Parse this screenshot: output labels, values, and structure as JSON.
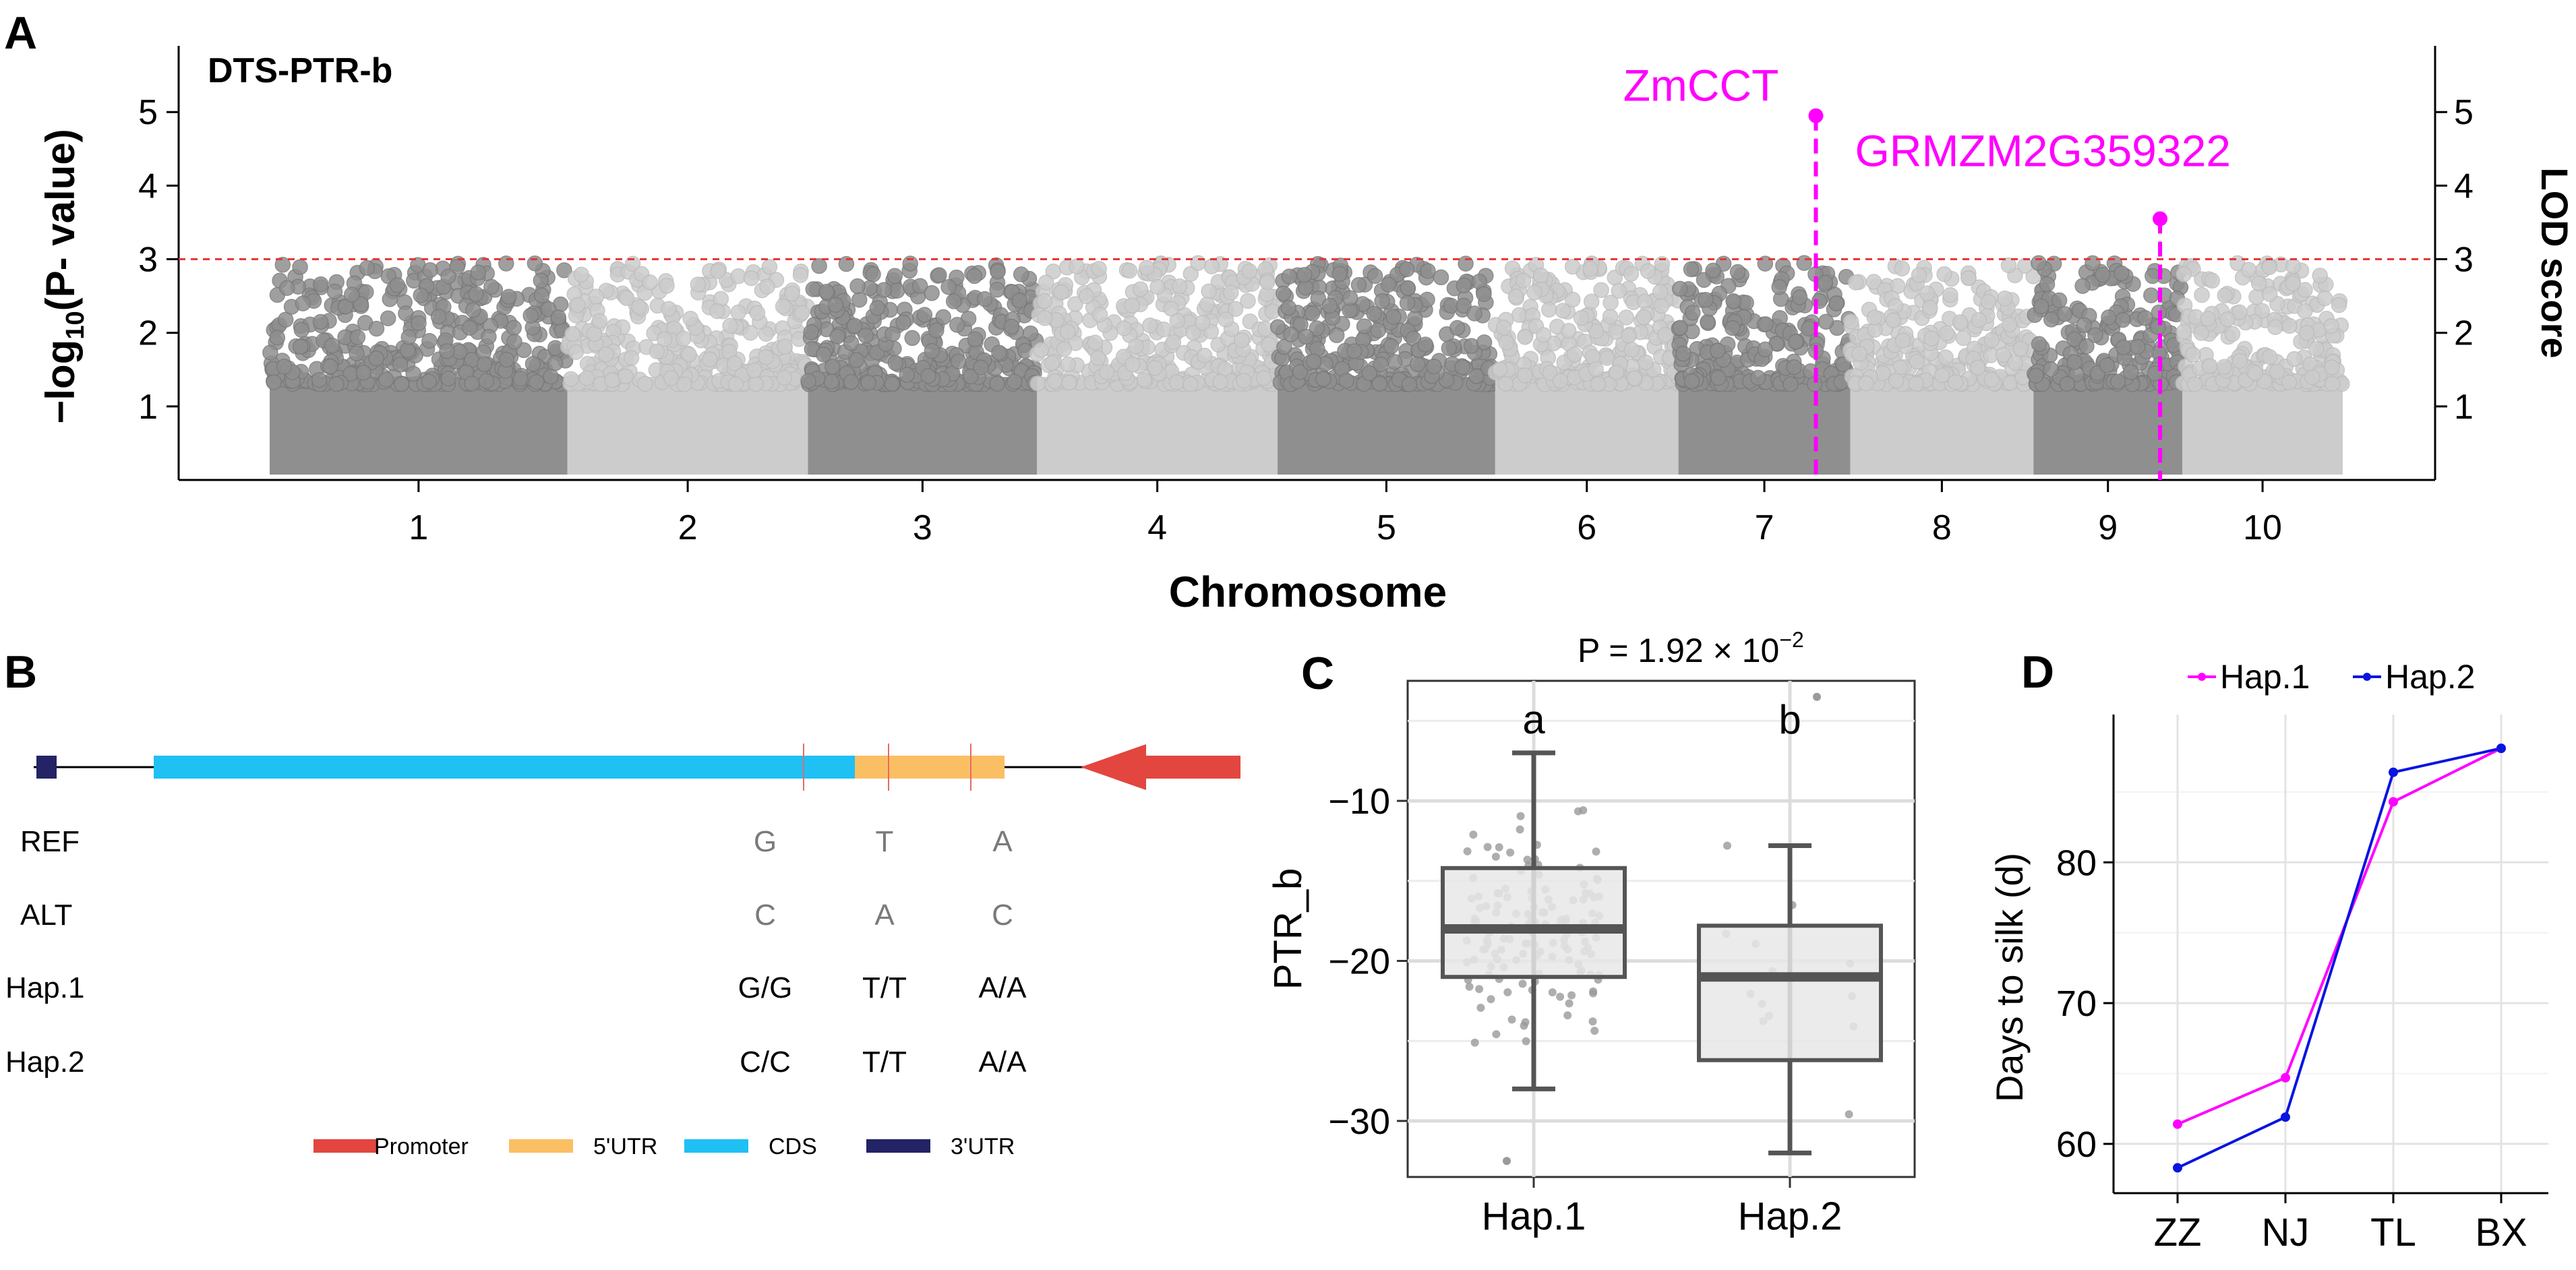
{
  "figure": {
    "panel_labels": [
      "A",
      "B",
      "C",
      "D"
    ],
    "colors": {
      "magenta": "#ff00ff",
      "threshold": "#e53935",
      "chr_dark": "#8f8f8f",
      "chr_light": "#cccccc",
      "promoter": "#e2463f",
      "utr5": "#fbbf63",
      "cds": "#1fc0f4",
      "utr3": "#232366",
      "hap2_line": "#0a14e0"
    }
  },
  "chart_data": [
    {
      "panel": "A",
      "type": "scatter",
      "title": "DTS-PTR-b",
      "xlabel": "Chromosome",
      "ylabel_left": {
        "prefix": "−log",
        "sub": "10",
        "suffix": "(P- value)"
      },
      "ylabel_right": "LOD score",
      "categories": [
        "1",
        "2",
        "3",
        "4",
        "5",
        "6",
        "7",
        "8",
        "9",
        "10"
      ],
      "chromosome_weights": [
        1.3,
        1.05,
        1.0,
        1.05,
        0.95,
        0.8,
        0.75,
        0.8,
        0.65,
        0.7
      ],
      "yticks_left": [
        "1",
        "2",
        "3",
        "4",
        "5"
      ],
      "yticks_right": [
        "1",
        "2",
        "3",
        "4",
        "5"
      ],
      "ylim": [
        0,
        5.9
      ],
      "threshold": 3,
      "significant_loci": [
        {
          "label": "ZmCCT",
          "chromosome": 7,
          "position": 0.8,
          "value": 4.95
        },
        {
          "label": "GRMZM2G359322",
          "chromosome": 9,
          "position": 0.85,
          "value": 3.55
        }
      ]
    },
    {
      "panel": "C",
      "type": "box",
      "ylabel": "PTR_b",
      "pvalue": {
        "text": "P = 1.92 × 10",
        "exp": "−2"
      },
      "categories": [
        "Hap.1",
        "Hap.2"
      ],
      "letters": [
        "a",
        "b"
      ],
      "yticks": [
        "−10",
        "−20",
        "−30"
      ],
      "ytick_values": [
        -10,
        -20,
        -30
      ],
      "ylim": [
        -33.5,
        -2.5
      ],
      "boxes": [
        {
          "name": "Hap.1",
          "min": -28,
          "q1": -21,
          "median": -18,
          "q3": -14.2,
          "max": -7,
          "n_points": 140,
          "outliers": [
            -32.5
          ]
        },
        {
          "name": "Hap.2",
          "min": -32,
          "q1": -26.2,
          "median": -21,
          "q3": -17.8,
          "max": -12.8,
          "n_points": 14,
          "outliers": [
            -3.5
          ]
        }
      ]
    },
    {
      "panel": "D",
      "type": "line",
      "ylabel": "Days to silk (d)",
      "categories": [
        "ZZ",
        "NJ",
        "TL",
        "BX"
      ],
      "yticks": [
        "60",
        "70",
        "80"
      ],
      "ytick_values": [
        60,
        70,
        80
      ],
      "ylim": [
        56.5,
        90.5
      ],
      "series": [
        {
          "name": "Hap.1",
          "values": [
            61.4,
            64.7,
            84.3,
            88.1
          ]
        },
        {
          "name": "Hap.2",
          "values": [
            58.3,
            61.9,
            86.4,
            88.1
          ]
        }
      ]
    }
  ],
  "gene_structure": {
    "rows": [
      {
        "label": "REF",
        "values": [
          "G",
          "T",
          "A"
        ]
      },
      {
        "label": "ALT",
        "values": [
          "C",
          "A",
          "C"
        ]
      },
      {
        "label": "Hap.1",
        "values": [
          "G/G",
          "T/T",
          "A/A"
        ]
      },
      {
        "label": "Hap.2",
        "values": [
          "C/C",
          "T/T",
          "A/A"
        ]
      }
    ],
    "legend": [
      {
        "label": "Promoter",
        "color": "#e2463f"
      },
      {
        "label": "5'UTR",
        "color": "#fbbf63"
      },
      {
        "label": "CDS",
        "color": "#1fc0f4"
      },
      {
        "label": "3'UTR",
        "color": "#232366"
      }
    ]
  }
}
